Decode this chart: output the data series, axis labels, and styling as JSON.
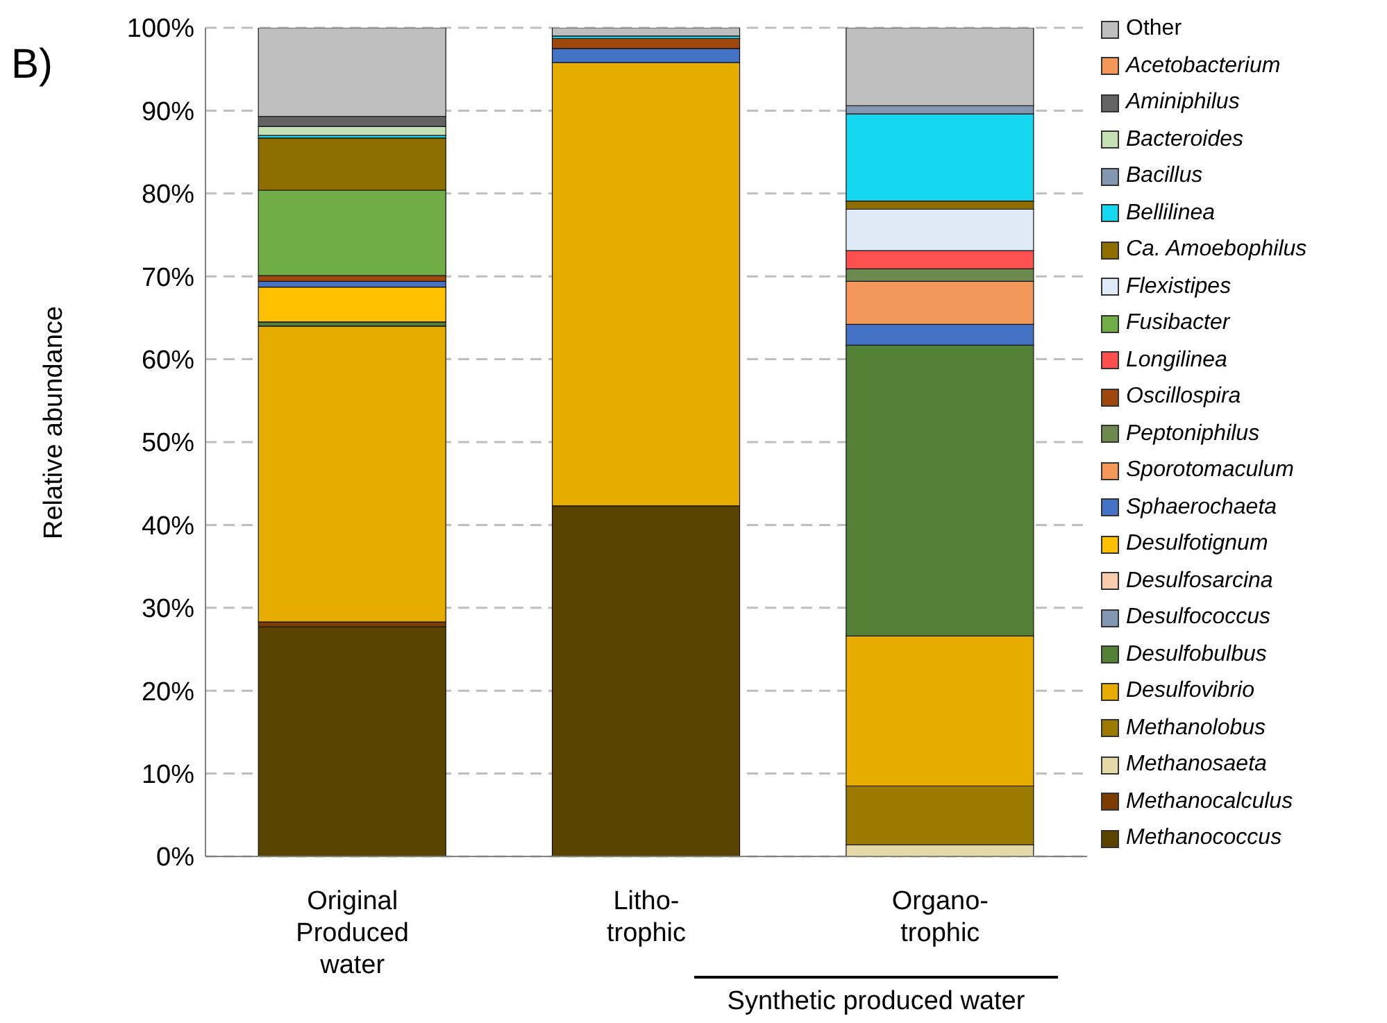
{
  "chart_data": {
    "type": "bar",
    "stacked": true,
    "ylabel": "Relative abundance",
    "annotations": [
      "B)",
      "Synthetic produced water"
    ],
    "categories": [
      "Original\nProduced\nwater",
      "Litho-\ntrophic",
      "Organo-\ntrophic"
    ],
    "ylim": [
      0,
      100
    ],
    "yticks": [
      {
        "value": 0,
        "label": "0%"
      },
      {
        "value": 10,
        "label": "10%"
      },
      {
        "value": 20,
        "label": "20%"
      },
      {
        "value": 30,
        "label": "30%"
      },
      {
        "value": 40,
        "label": "40%"
      },
      {
        "value": 50,
        "label": "50%"
      },
      {
        "value": 60,
        "label": "60%"
      },
      {
        "value": 70,
        "label": "70%"
      },
      {
        "value": 80,
        "label": "80%"
      },
      {
        "value": 90,
        "label": "90%"
      },
      {
        "value": 100,
        "label": "100%"
      }
    ],
    "grid": "y",
    "legend": "right",
    "series": [
      {
        "name": "Methanococcus",
        "color": "#5a4300",
        "values": [
          27.7,
          42.3,
          0
        ]
      },
      {
        "name": "Methanocalculus",
        "color": "#7a3c00",
        "values": [
          0.6,
          0,
          0
        ]
      },
      {
        "name": "Methanosaeta",
        "color": "#e6d9a8",
        "values": [
          0,
          0,
          1.4
        ]
      },
      {
        "name": "Methanolobus",
        "color": "#9c7a00",
        "values": [
          0,
          0,
          7.1
        ]
      },
      {
        "name": "Desulfovibrio",
        "color": "#e6ad00",
        "values": [
          35.7,
          53.5,
          18.1
        ]
      },
      {
        "name": "Desulfobulbus",
        "color": "#538135",
        "values": [
          0.5,
          0,
          35.1
        ]
      },
      {
        "name": "Desulfococcus",
        "color": "#8497b0",
        "values": [
          0,
          0,
          0
        ]
      },
      {
        "name": "Desulfosarcina",
        "color": "#f8cbad",
        "values": [
          0,
          0,
          0
        ]
      },
      {
        "name": "Desulfotignum",
        "color": "#ffc000",
        "values": [
          4.2,
          0,
          0
        ]
      },
      {
        "name": "Sphaerochaeta",
        "color": "#4472c4",
        "values": [
          0.7,
          1.7,
          2.5
        ]
      },
      {
        "name": "Sporotomaculum",
        "color": "#f4975a",
        "values": [
          0,
          0,
          5.2
        ]
      },
      {
        "name": "Peptoniphilus",
        "color": "#6d8a4e",
        "values": [
          0,
          0,
          1.5
        ]
      },
      {
        "name": "Oscillospira",
        "color": "#9e480e",
        "values": [
          0.7,
          1.2,
          0
        ]
      },
      {
        "name": "Longilinea",
        "color": "#ff5050",
        "values": [
          0,
          0,
          2.2
        ]
      },
      {
        "name": "Fusibacter",
        "color": "#70ad47",
        "values": [
          10.3,
          0,
          0
        ]
      },
      {
        "name": "Flexistipes",
        "color": "#deebf7",
        "values": [
          0,
          0,
          5.0
        ]
      },
      {
        "name": "Ca. Amoebophilus",
        "color": "#8f6e00",
        "values": [
          6.3,
          0,
          1.0
        ]
      },
      {
        "name": "Bellilinea",
        "color": "#15d8f0",
        "values": [
          0.3,
          0.3,
          10.5
        ]
      },
      {
        "name": "Bacillus",
        "color": "#8497b0",
        "values": [
          0,
          0,
          1.0
        ]
      },
      {
        "name": "Bacteroides",
        "color": "#c5e0b4",
        "values": [
          1.1,
          0,
          0
        ]
      },
      {
        "name": "Aminiphilus",
        "color": "#636363",
        "values": [
          1.2,
          0,
          0
        ]
      },
      {
        "name": "Acetobacterium",
        "color": "#f4975a",
        "values": [
          0,
          0,
          0
        ]
      },
      {
        "name": "Other",
        "color": "#bfbfbf",
        "values": [
          10.7,
          1.0,
          9.4
        ]
      }
    ]
  }
}
